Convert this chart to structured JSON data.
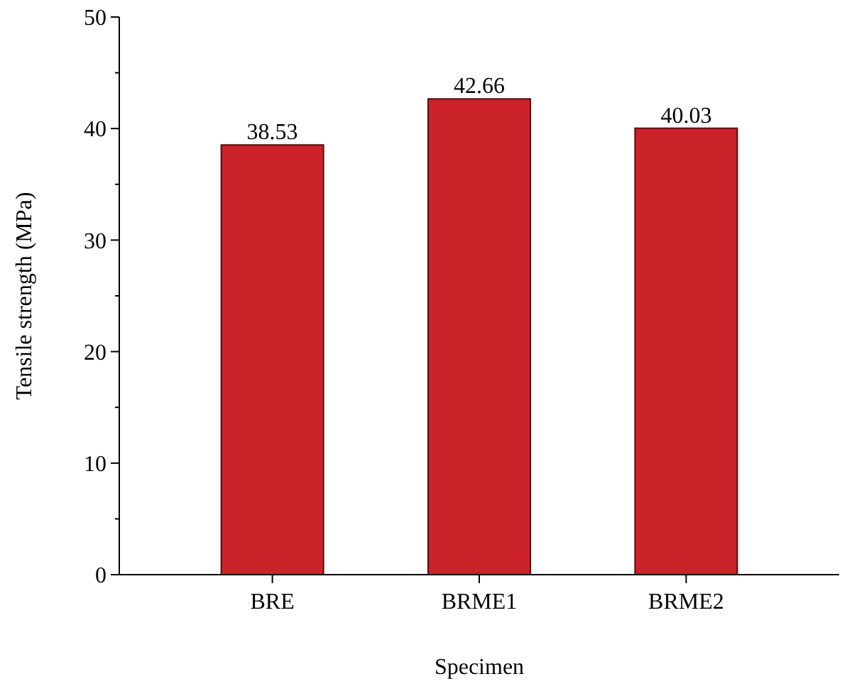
{
  "chart_data": {
    "type": "bar",
    "xlabel": "Specimen",
    "ylabel": "Tensile strength (MPa)",
    "categories": [
      "BRE",
      "BRME1",
      "BRME2"
    ],
    "values": [
      38.53,
      42.66,
      40.03
    ],
    "color": "#cc2229",
    "data_labels": true,
    "ylim": [
      0,
      50
    ],
    "yticks": [
      0,
      {
        "value": 5,
        "label": null
      },
      10,
      {
        "value": 15,
        "label": null
      },
      20,
      {
        "value": 25,
        "label": null
      },
      30,
      {
        "value": 35,
        "label": null
      },
      40,
      {
        "value": 45,
        "label": null
      },
      50
    ],
    "grid": false
  }
}
